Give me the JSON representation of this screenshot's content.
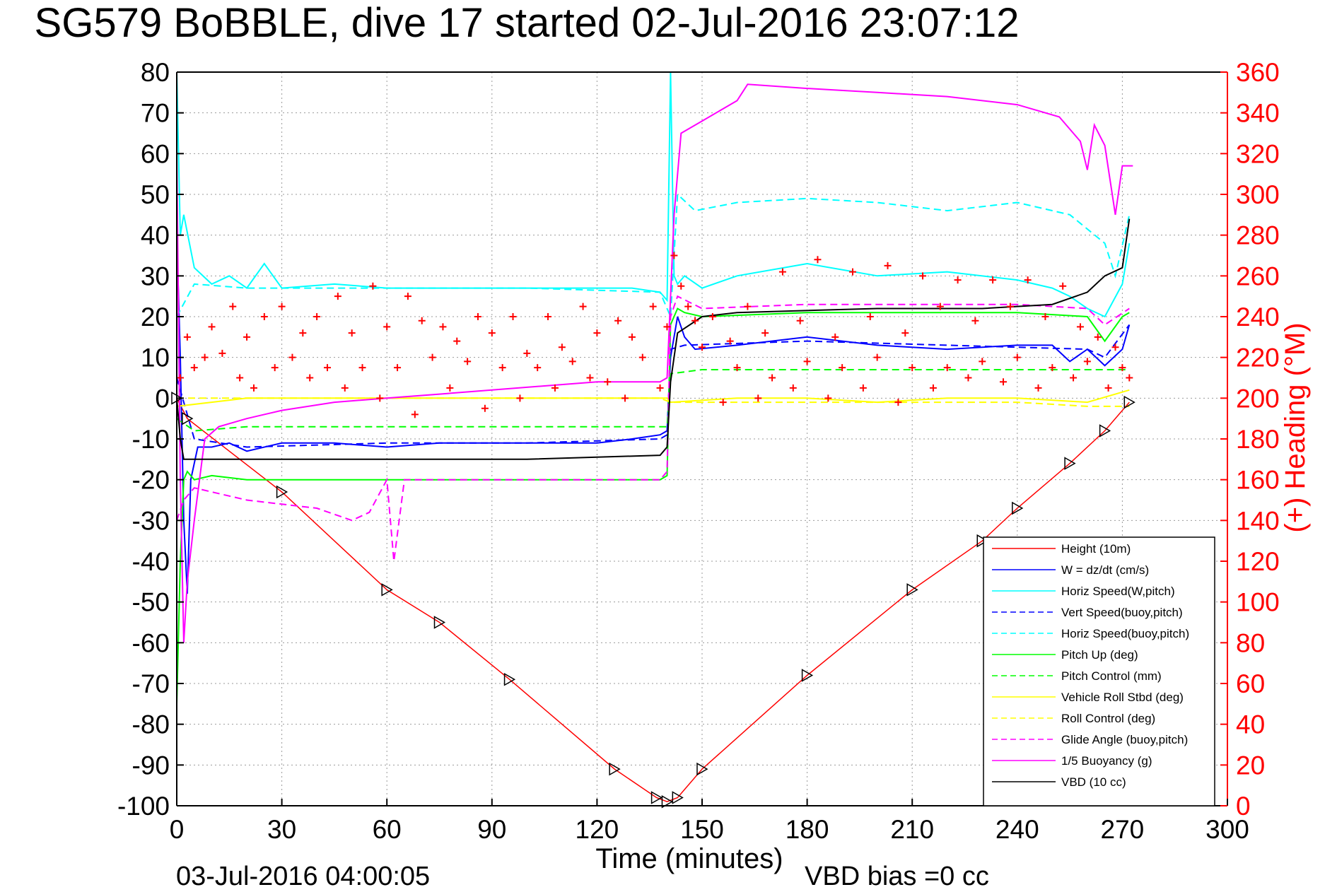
{
  "chart_data": {
    "type": "line",
    "title": "SG579 BoBBLE, dive 17 started 02-Jul-2016 23:07:12",
    "xlabel": "Time (minutes)",
    "ylabel": "",
    "y2label": "(+) Heading (°M)",
    "xlim": [
      0,
      300
    ],
    "ylim": [
      -100,
      80
    ],
    "y2lim": [
      0,
      360
    ],
    "x_ticks": [
      "0",
      "30",
      "60",
      "90",
      "120",
      "150",
      "180",
      "210",
      "240",
      "270",
      "300"
    ],
    "y_ticks": [
      "80",
      "70",
      "60",
      "50",
      "40",
      "30",
      "20",
      "10",
      "0",
      "-10",
      "-20",
      "-30",
      "-40",
      "-50",
      "-60",
      "-70",
      "-80",
      "-90",
      "-100"
    ],
    "y2_ticks": [
      "360",
      "340",
      "320",
      "300",
      "280",
      "260",
      "240",
      "220",
      "200",
      "180",
      "160",
      "140",
      "120",
      "100",
      "80",
      "60",
      "40",
      "20",
      "0"
    ],
    "grid": true,
    "legend_position": "bottom-right",
    "footer_left": "03-Jul-2016 04:00:05",
    "footer_right": "VBD bias =0 cc",
    "series": [
      {
        "name": "Height (10m)",
        "color": "#ff0000",
        "style": "solid",
        "x": [
          0,
          3,
          30,
          60,
          75,
          95,
          125,
          137,
          140,
          143,
          150,
          180,
          210,
          230,
          240,
          255,
          265,
          272
        ],
        "y": [
          0,
          -5,
          -23,
          -47,
          -55,
          -69,
          -91,
          -98,
          -99,
          -98,
          -91,
          -68,
          -47,
          -35,
          -27,
          -16,
          -8,
          -1
        ]
      },
      {
        "name": "W = dz/dt (cm/s)",
        "color": "#0000ff",
        "style": "solid",
        "x": [
          0,
          1,
          2,
          3,
          4,
          6,
          10,
          15,
          20,
          30,
          45,
          60,
          75,
          90,
          105,
          120,
          130,
          138,
          140,
          141,
          143,
          145,
          148,
          160,
          180,
          200,
          220,
          240,
          250,
          255,
          260,
          265,
          270,
          272
        ],
        "y": [
          40,
          10,
          -30,
          -48,
          -20,
          -12,
          -12,
          -11,
          -13,
          -11,
          -11,
          -12,
          -11,
          -11,
          -11,
          -11,
          -10,
          -9,
          -8,
          10,
          20,
          15,
          12,
          13,
          15,
          13,
          12,
          13,
          13,
          9,
          12,
          8,
          12,
          18
        ]
      },
      {
        "name": "Horiz Speed(W,pitch)",
        "color": "#00ffff",
        "style": "solid",
        "x": [
          0,
          1,
          2,
          5,
          10,
          15,
          20,
          25,
          30,
          45,
          60,
          75,
          90,
          105,
          120,
          130,
          138,
          140,
          141,
          142,
          143,
          145,
          150,
          160,
          180,
          200,
          220,
          240,
          250,
          255,
          260,
          265,
          270,
          272
        ],
        "y": [
          80,
          40,
          45,
          32,
          28,
          30,
          27,
          33,
          27,
          28,
          27,
          27,
          27,
          27,
          27,
          27,
          26,
          24,
          80,
          30,
          28,
          30,
          27,
          30,
          33,
          30,
          31,
          29,
          27,
          25,
          22,
          20,
          28,
          38
        ]
      },
      {
        "name": "Vert Speed(buoy,pitch)",
        "color": "#0000ff",
        "style": "dashed",
        "x": [
          0,
          5,
          20,
          60,
          100,
          138,
          140,
          141,
          145,
          180,
          220,
          260,
          265,
          272
        ],
        "y": [
          5,
          -10,
          -12,
          -11,
          -11,
          -10,
          -9,
          12,
          13,
          14,
          13,
          12,
          10,
          18
        ]
      },
      {
        "name": "Horiz Speed(buoy,pitch)",
        "color": "#00ffff",
        "style": "dashed",
        "x": [
          0,
          5,
          20,
          60,
          100,
          138,
          141,
          143,
          148,
          160,
          180,
          200,
          220,
          240,
          255,
          265,
          268,
          272
        ],
        "y": [
          20,
          28,
          27,
          27,
          27,
          26,
          20,
          50,
          46,
          48,
          49,
          48,
          46,
          48,
          45,
          38,
          30,
          45
        ]
      },
      {
        "name": "Pitch Up (deg)",
        "color": "#00ff00",
        "style": "solid",
        "x": [
          0,
          1,
          2,
          3,
          5,
          10,
          20,
          30,
          45,
          60,
          75,
          90,
          105,
          120,
          130,
          138,
          140,
          141,
          143,
          145,
          150,
          180,
          210,
          240,
          260,
          265,
          270,
          272
        ],
        "y": [
          -75,
          -40,
          -20,
          -18,
          -20,
          -19,
          -20,
          -20,
          -20,
          -20,
          -20,
          -20,
          -20,
          -20,
          -20,
          -20,
          -19,
          18,
          22,
          21,
          20,
          21,
          21,
          21,
          20,
          14,
          20,
          21
        ]
      },
      {
        "name": "Pitch Control (mm)",
        "color": "#00ff00",
        "style": "dashed",
        "x": [
          0,
          5,
          20,
          40,
          60,
          80,
          100,
          120,
          138,
          140,
          141,
          150,
          180,
          210,
          240,
          260,
          265,
          272
        ],
        "y": [
          -5,
          -8,
          -7,
          -7,
          -7,
          -7,
          -7,
          -7,
          -7,
          -7,
          6,
          7,
          7,
          7,
          7,
          7,
          7,
          7
        ]
      },
      {
        "name": "Vehicle Roll Stbd (deg)",
        "color": "#ffff00",
        "style": "solid",
        "x": [
          0,
          20,
          40,
          60,
          80,
          100,
          120,
          138,
          140,
          141,
          160,
          180,
          200,
          220,
          240,
          260,
          272
        ],
        "y": [
          -2,
          0,
          0,
          0,
          0,
          0,
          0,
          0,
          0,
          -1,
          0,
          0,
          -1,
          0,
          0,
          -1,
          2
        ]
      },
      {
        "name": "Roll Control (deg)",
        "color": "#ffff00",
        "style": "dashed",
        "x": [
          0,
          20,
          40,
          60,
          80,
          100,
          120,
          138,
          141,
          160,
          180,
          200,
          220,
          240,
          260,
          272
        ],
        "y": [
          0,
          0,
          0,
          0,
          0,
          0,
          0,
          0,
          -1,
          -1,
          -1,
          -1,
          -1,
          -1,
          -2,
          -2
        ]
      },
      {
        "name": "Glide Angle (buoy,pitch)",
        "color": "#ff00ff",
        "style": "dashed",
        "x": [
          0,
          2,
          5,
          10,
          20,
          30,
          40,
          50,
          55,
          60,
          62,
          65,
          75,
          100,
          138,
          140,
          141,
          143,
          150,
          180,
          210,
          240,
          260,
          265,
          272
        ],
        "y": [
          -30,
          -25,
          -22,
          -23,
          -25,
          -26,
          -27,
          -30,
          -28,
          -20,
          -40,
          -20,
          -20,
          -20,
          -20,
          -18,
          20,
          25,
          22,
          23,
          23,
          23,
          22,
          18,
          22
        ]
      },
      {
        "name": "1/5 Buoyancy (g)",
        "color": "#ff00ff",
        "style": "solid",
        "x": [
          0,
          1,
          2,
          3,
          5,
          8,
          12,
          20,
          30,
          45,
          60,
          75,
          90,
          105,
          120,
          138,
          140,
          142,
          144,
          150,
          160,
          163,
          180,
          200,
          220,
          240,
          252,
          258,
          260,
          262,
          265,
          268,
          270,
          273
        ],
        "y": [
          60,
          -20,
          -60,
          -45,
          -30,
          -10,
          -7,
          -5,
          -3,
          -1,
          0,
          1,
          2,
          3,
          4,
          4,
          5,
          45,
          65,
          68,
          73,
          77,
          76,
          75,
          74,
          72,
          69,
          63,
          56,
          67,
          62,
          45,
          57,
          57
        ]
      },
      {
        "name": "VBD (10 cc)",
        "color": "#000000",
        "style": "solid",
        "x": [
          0,
          1,
          2,
          3,
          20,
          60,
          100,
          138,
          140,
          141,
          143,
          150,
          160,
          200,
          230,
          250,
          260,
          265,
          270,
          272
        ],
        "y": [
          0,
          -10,
          -15,
          -15,
          -15,
          -15,
          -15,
          -14,
          -12,
          4,
          16,
          20,
          21,
          22,
          22,
          23,
          26,
          30,
          32,
          44
        ]
      }
    ],
    "heading_series": {
      "name": "Heading (°M)",
      "color": "#ff0000",
      "marker": "+",
      "x": [
        1,
        3,
        5,
        8,
        10,
        13,
        16,
        18,
        20,
        22,
        25,
        28,
        30,
        33,
        36,
        38,
        40,
        43,
        46,
        48,
        50,
        53,
        56,
        58,
        60,
        63,
        66,
        68,
        70,
        73,
        76,
        78,
        80,
        83,
        86,
        88,
        90,
        93,
        96,
        98,
        100,
        103,
        106,
        108,
        110,
        113,
        116,
        118,
        120,
        123,
        126,
        128,
        130,
        133,
        136,
        138,
        140,
        142,
        144,
        146,
        148,
        150,
        153,
        156,
        158,
        160,
        163,
        166,
        168,
        170,
        173,
        176,
        178,
        180,
        183,
        186,
        188,
        190,
        193,
        196,
        198,
        200,
        203,
        206,
        208,
        210,
        213,
        216,
        218,
        220,
        223,
        226,
        228,
        230,
        233,
        236,
        238,
        240,
        243,
        246,
        248,
        250,
        253,
        256,
        258,
        260,
        263,
        266,
        268,
        270,
        272
      ],
      "y": [
        210,
        230,
        215,
        220,
        235,
        222,
        245,
        210,
        230,
        205,
        240,
        215,
        245,
        220,
        232,
        210,
        240,
        215,
        250,
        205,
        232,
        215,
        255,
        200,
        235,
        215,
        250,
        192,
        238,
        220,
        235,
        205,
        228,
        218,
        240,
        195,
        232,
        215,
        240,
        200,
        222,
        215,
        240,
        205,
        225,
        218,
        245,
        210,
        232,
        208,
        238,
        200,
        230,
        220,
        245,
        205,
        235,
        270,
        255,
        245,
        238,
        225,
        240,
        198,
        228,
        215,
        245,
        200,
        232,
        210,
        262,
        205,
        238,
        218,
        268,
        200,
        230,
        215,
        262,
        205,
        240,
        220,
        265,
        198,
        232,
        215,
        260,
        205,
        245,
        215,
        258,
        210,
        238,
        218,
        258,
        208,
        245,
        220,
        258,
        205,
        240,
        215,
        255,
        210,
        235,
        218,
        230,
        205,
        225,
        215,
        210
      ]
    }
  }
}
